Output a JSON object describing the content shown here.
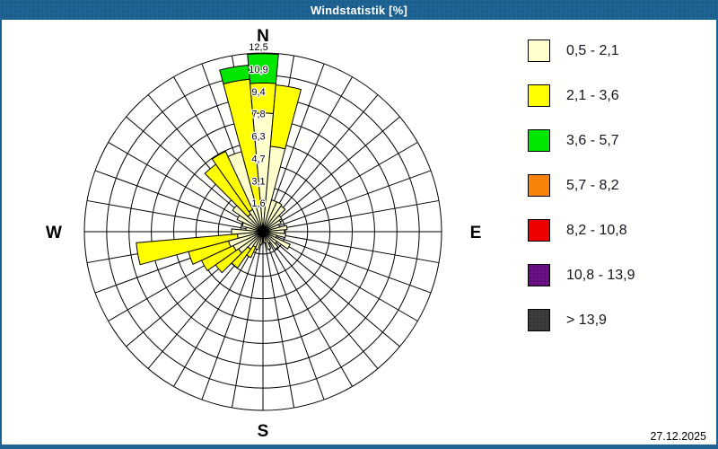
{
  "window": {
    "title": "Windstatistik [%]",
    "date": "27.12.2025"
  },
  "colors": {
    "frame_blue": "#1d6394",
    "background": "#fffffe",
    "grid_line": "#000000"
  },
  "chart_data": {
    "type": "windrose-stacked-polar-bar",
    "title": "Windstatistik [%]",
    "unit": "%",
    "sector_count": 36,
    "sector_width_deg": 10,
    "ring_max": 12.5,
    "ring_count": 8,
    "ring_labels": [
      "1,6",
      "3,1",
      "4,7",
      "6,3",
      "7,8",
      "9,4",
      "10,9",
      "12,5"
    ],
    "compass": {
      "north": "N",
      "east": "E",
      "south": "S",
      "west": "W"
    },
    "legend_position": "right",
    "speed_classes": [
      {
        "label": "0,5 - 2,1",
        "color": "#ffffcc",
        "dotted": false
      },
      {
        "label": "2,1 - 3,6",
        "color": "#ffff00",
        "dotted": false
      },
      {
        "label": "3,6 - 5,7",
        "color": "#00e600",
        "dotted": false
      },
      {
        "label": "5,7 - 8,2",
        "color": "#f8820a",
        "dotted": false
      },
      {
        "label": "8,2 - 10,8",
        "color": "#ee0000",
        "dotted": false
      },
      {
        "label": "10,8 - 13,9",
        "color": "#6b0f86",
        "dotted": true
      },
      {
        "label": "> 13,9",
        "color": "#3d3d3d",
        "dotted": true
      }
    ],
    "bars": [
      {
        "dir": 0,
        "segments": [
          {
            "class_index": 0,
            "from": 0,
            "to": 8.3
          },
          {
            "class_index": 1,
            "from": 8.3,
            "to": 10.4
          },
          {
            "class_index": 2,
            "from": 10.4,
            "to": 12.45
          }
        ]
      },
      {
        "dir": 10,
        "segments": [
          {
            "class_index": 0,
            "from": 0,
            "to": 6.0
          },
          {
            "class_index": 1,
            "from": 6.0,
            "to": 10.3
          }
        ]
      },
      {
        "dir": 20,
        "segments": [
          {
            "class_index": 0,
            "from": 0,
            "to": 2.3
          }
        ]
      },
      {
        "dir": 30,
        "segments": [
          {
            "class_index": 0,
            "from": 0,
            "to": 2.3
          }
        ]
      },
      {
        "dir": 40,
        "segments": [
          {
            "class_index": 0,
            "from": 0,
            "to": 2.2
          }
        ]
      },
      {
        "dir": 50,
        "segments": [
          {
            "class_index": 0,
            "from": 0,
            "to": 1.6
          }
        ]
      },
      {
        "dir": 60,
        "segments": [
          {
            "class_index": 0,
            "from": 0,
            "to": 1.4
          }
        ]
      },
      {
        "dir": 70,
        "segments": [
          {
            "class_index": 0,
            "from": 0,
            "to": 1.2
          }
        ]
      },
      {
        "dir": 80,
        "segments": [
          {
            "class_index": 0,
            "from": 0,
            "to": 1.7
          }
        ]
      },
      {
        "dir": 90,
        "segments": [
          {
            "class_index": 0,
            "from": 0,
            "to": 1.5
          }
        ]
      },
      {
        "dir": 100,
        "segments": [
          {
            "class_index": 0,
            "from": 0,
            "to": 1.6
          }
        ]
      },
      {
        "dir": 110,
        "segments": [
          {
            "class_index": 0,
            "from": 0,
            "to": 1.0
          }
        ]
      },
      {
        "dir": 120,
        "segments": [
          {
            "class_index": 0,
            "from": 0,
            "to": 2.1
          }
        ]
      },
      {
        "dir": 130,
        "segments": [
          {
            "class_index": 0,
            "from": 0,
            "to": 1.2
          }
        ]
      },
      {
        "dir": 140,
        "segments": [
          {
            "class_index": 0,
            "from": 0,
            "to": 1.5
          }
        ]
      },
      {
        "dir": 150,
        "segments": [
          {
            "class_index": 0,
            "from": 0,
            "to": 0.9
          }
        ]
      },
      {
        "dir": 160,
        "segments": [
          {
            "class_index": 0,
            "from": 0,
            "to": 1.3
          }
        ]
      },
      {
        "dir": 170,
        "segments": [
          {
            "class_index": 0,
            "from": 0,
            "to": 0.8
          }
        ]
      },
      {
        "dir": 190,
        "segments": [
          {
            "class_index": 0,
            "from": 0,
            "to": 0.9
          }
        ]
      },
      {
        "dir": 200,
        "segments": [
          {
            "class_index": 0,
            "from": 0,
            "to": 1.3
          }
        ]
      },
      {
        "dir": 210,
        "segments": [
          {
            "class_index": 0,
            "from": 0,
            "to": 1.2
          },
          {
            "class_index": 1,
            "from": 1.2,
            "to": 2.0
          }
        ]
      },
      {
        "dir": 220,
        "segments": [
          {
            "class_index": 0,
            "from": 0,
            "to": 1.5
          },
          {
            "class_index": 1,
            "from": 1.5,
            "to": 3.1
          }
        ]
      },
      {
        "dir": 230,
        "segments": [
          {
            "class_index": 0,
            "from": 0,
            "to": 2.1
          },
          {
            "class_index": 1,
            "from": 2.1,
            "to": 4.05
          }
        ]
      },
      {
        "dir": 240,
        "segments": [
          {
            "class_index": 0,
            "from": 0,
            "to": 2.3
          },
          {
            "class_index": 1,
            "from": 2.3,
            "to": 4.75
          }
        ]
      },
      {
        "dir": 250,
        "segments": [
          {
            "class_index": 0,
            "from": 0,
            "to": 2.5
          },
          {
            "class_index": 1,
            "from": 2.5,
            "to": 5.4
          }
        ]
      },
      {
        "dir": 260,
        "segments": [
          {
            "class_index": 0,
            "from": 0,
            "to": 1.8
          },
          {
            "class_index": 1,
            "from": 1.8,
            "to": 8.9
          }
        ]
      },
      {
        "dir": 270,
        "segments": [
          {
            "class_index": 0,
            "from": 0,
            "to": 2.2
          }
        ]
      },
      {
        "dir": 280,
        "segments": [
          {
            "class_index": 0,
            "from": 0,
            "to": 1.2
          }
        ]
      },
      {
        "dir": 290,
        "segments": [
          {
            "class_index": 0,
            "from": 0,
            "to": 1.5
          }
        ]
      },
      {
        "dir": 300,
        "segments": [
          {
            "class_index": 0,
            "from": 0,
            "to": 2.0
          }
        ]
      },
      {
        "dir": 310,
        "segments": [
          {
            "class_index": 0,
            "from": 0,
            "to": 2.6
          }
        ]
      },
      {
        "dir": 320,
        "segments": [
          {
            "class_index": 0,
            "from": 0,
            "to": 1.5
          },
          {
            "class_index": 1,
            "from": 1.5,
            "to": 5.75
          }
        ]
      },
      {
        "dir": 330,
        "segments": [
          {
            "class_index": 0,
            "from": 0,
            "to": 1.7
          },
          {
            "class_index": 1,
            "from": 1.7,
            "to": 6.2
          }
        ]
      },
      {
        "dir": 340,
        "segments": [
          {
            "class_index": 0,
            "from": 0,
            "to": 5.8
          }
        ]
      },
      {
        "dir": 350,
        "segments": [
          {
            "class_index": 0,
            "from": 0,
            "to": 1.8
          },
          {
            "class_index": 1,
            "from": 1.8,
            "to": 10.7
          },
          {
            "class_index": 2,
            "from": 10.7,
            "to": 11.7
          }
        ]
      }
    ]
  }
}
